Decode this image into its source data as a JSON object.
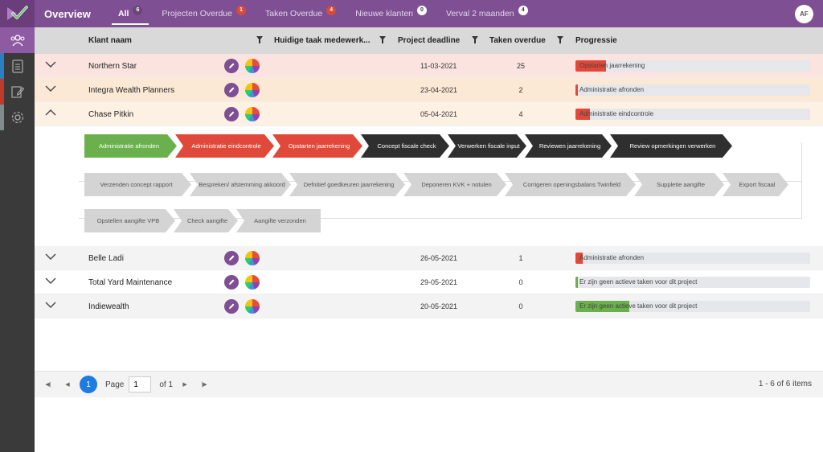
{
  "header": {
    "title": "Overview",
    "tabs": [
      {
        "label": "All",
        "badge": "6"
      },
      {
        "label": "Projecten Overdue",
        "badge": "1"
      },
      {
        "label": "Taken Overdue",
        "badge": "4"
      },
      {
        "label": "Nieuwe klanten",
        "badge": "0"
      },
      {
        "label": "Verval 2 maanden",
        "badge": "4"
      }
    ],
    "user_initials": "AF"
  },
  "table": {
    "columns": {
      "client": "Klant naam",
      "current_task": "Huidige taak medewerk...",
      "deadline": "Project deadline",
      "overdue": "Taken overdue",
      "progress": "Progressie"
    },
    "rows": [
      {
        "name": "Northern Star",
        "deadline": "11-03-2021",
        "overdue": "25",
        "progress_label": "Opstarten jaarrekening",
        "progress_fraction": 0.13,
        "progress_color": "#e0493a",
        "bg": "#fbe3df",
        "expanded": false
      },
      {
        "name": "Integra Wealth Planners",
        "deadline": "23-04-2021",
        "overdue": "2",
        "progress_label": "Administratie afronden",
        "progress_fraction": 0.01,
        "progress_color": "#e0493a",
        "bg": "#fbe9d6",
        "expanded": false
      },
      {
        "name": "Chase Pitkin",
        "deadline": "05-04-2021",
        "overdue": "4",
        "progress_label": "Administratie eindcontrole",
        "progress_fraction": 0.06,
        "progress_color": "#e0493a",
        "bg": "#fdf1e3",
        "expanded": true
      },
      {
        "name": "Belle Ladi",
        "deadline": "26-05-2021",
        "overdue": "1",
        "progress_label": "Administratie afronden",
        "progress_fraction": 0.03,
        "progress_color": "#e0493a",
        "bg": "#f3f3f3",
        "expanded": false
      },
      {
        "name": "Total Yard Maintenance",
        "deadline": "29-05-2021",
        "overdue": "0",
        "progress_label": "Er zijn geen actieve taken voor dit project",
        "progress_fraction": 0.01,
        "progress_color": "#6ab04c",
        "bg": "#ffffff",
        "expanded": false
      },
      {
        "name": "Indiewealth",
        "deadline": "20-05-2021",
        "overdue": "0",
        "progress_label": "Er zijn geen actieve taken voor dit project",
        "progress_fraction": 0.23,
        "progress_color": "#6ab04c",
        "bg": "#f3f3f3",
        "expanded": false
      }
    ]
  },
  "expanded_tasks": {
    "line1": [
      {
        "label": "Administratie afronden",
        "status": "green"
      },
      {
        "label": "Administratie eindcontrole",
        "status": "red"
      },
      {
        "label": "Opstarten jaarrekening",
        "status": "red"
      },
      {
        "label": "Concept fiscale check",
        "status": "dark"
      },
      {
        "label": "Verwerken fiscale input",
        "status": "dark"
      },
      {
        "label": "Reviewen jaarrekening",
        "status": "dark"
      },
      {
        "label": "Review opmerkingen verwerken",
        "status": "dark"
      }
    ],
    "line2": [
      {
        "label": "Verzenden concept rapport",
        "status": "light"
      },
      {
        "label": "Bespreken/ afstemming akkoord",
        "status": "light"
      },
      {
        "label": "Defnitief goedkeuren jaarrekening",
        "status": "light"
      },
      {
        "label": "Deponeren KVK + notulen",
        "status": "light"
      },
      {
        "label": "Corrigeren openingsbalans Twinfield",
        "status": "light"
      },
      {
        "label": "Suppletie aangifte",
        "status": "light"
      },
      {
        "label": "Export fiscaal",
        "status": "light"
      }
    ],
    "line3": [
      {
        "label": "Opstellen aangifte VPB",
        "status": "light"
      },
      {
        "label": "Check aangifte",
        "status": "light"
      },
      {
        "label": "Aangifte verzonden",
        "status": "light"
      }
    ]
  },
  "pager": {
    "current_page": "1",
    "page_label": "Page",
    "page_input": "1",
    "of_label": "of 1",
    "count_label": "1 - 6 of 6 items"
  },
  "colors": {
    "brand_purple": "#7e4f93",
    "overdue_red": "#e0493a",
    "done_green": "#6ab04c",
    "pager_blue": "#1e7be0"
  }
}
